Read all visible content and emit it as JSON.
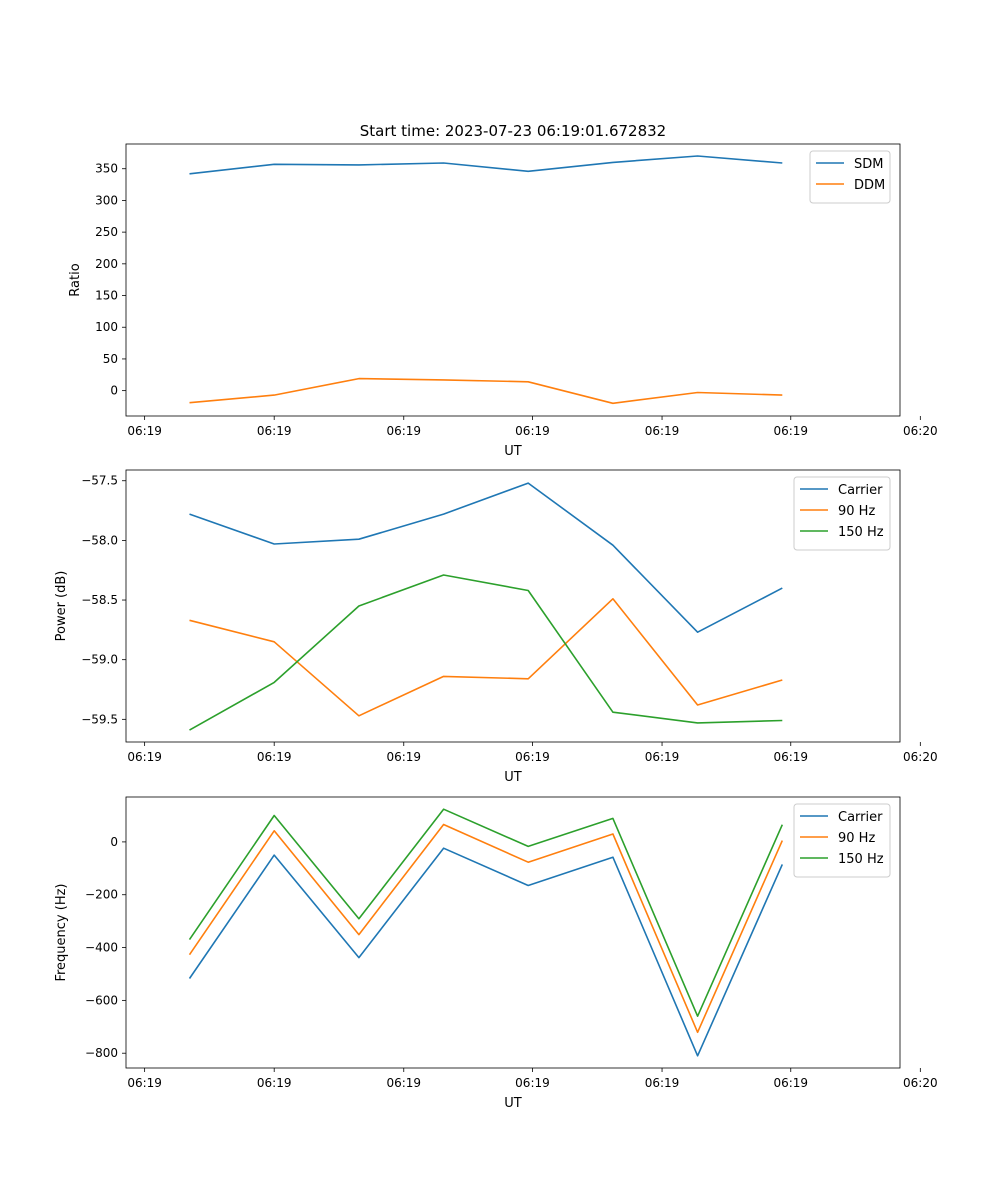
{
  "figure_title": "Start time: 2023-07-23 06:19:01.672832",
  "colors": {
    "blue": "#1f77b4",
    "orange": "#ff7f0e",
    "green": "#2ca02c",
    "axis": "#000000",
    "legend_border": "#cccccc"
  },
  "chart_data": [
    {
      "type": "line",
      "title": "Start time: 2023-07-23 06:19:01.672832",
      "xlabel": "UT",
      "ylabel": "Ratio",
      "x": [
        1,
        2,
        3,
        4,
        5,
        6,
        7,
        8
      ],
      "xlim": [
        0.25,
        9.39
      ],
      "ylim": [
        -40,
        389
      ],
      "x_ticks": [
        0.47,
        2.0,
        3.53,
        5.05,
        6.58,
        8.1,
        9.63
      ],
      "x_tick_labels": [
        "06:19",
        "06:19",
        "06:19",
        "06:19",
        "06:19",
        "06:19",
        "06:20"
      ],
      "y_ticks": [
        0,
        50,
        100,
        150,
        200,
        250,
        300,
        350
      ],
      "y_tick_labels": [
        "0",
        "50",
        "100",
        "150",
        "200",
        "250",
        "300",
        "350"
      ],
      "legend_position": "upper-right",
      "series": [
        {
          "name": "SDM",
          "color": "#1f77b4",
          "values": [
            342,
            357,
            356,
            359,
            346,
            360,
            370,
            359
          ]
        },
        {
          "name": "DDM",
          "color": "#ff7f0e",
          "values": [
            -19,
            -7,
            19,
            17,
            14,
            -20,
            -3,
            -7
          ]
        }
      ]
    },
    {
      "type": "line",
      "title": "",
      "xlabel": "UT",
      "ylabel": "Power (dB)",
      "x": [
        1,
        2,
        3,
        4,
        5,
        6,
        7,
        8
      ],
      "xlim": [
        0.25,
        9.39
      ],
      "ylim": [
        -59.69,
        -57.41
      ],
      "x_ticks": [
        0.47,
        2.0,
        3.53,
        5.05,
        6.58,
        8.1,
        9.63
      ],
      "x_tick_labels": [
        "06:19",
        "06:19",
        "06:19",
        "06:19",
        "06:19",
        "06:19",
        "06:20"
      ],
      "y_ticks": [
        -59.5,
        -59.0,
        -58.5,
        -58.0,
        -57.5
      ],
      "y_tick_labels": [
        "−59.5",
        "−59.0",
        "−58.5",
        "−58.0",
        "−57.5"
      ],
      "legend_position": "upper-right",
      "series": [
        {
          "name": "Carrier",
          "color": "#1f77b4",
          "values": [
            -57.78,
            -58.03,
            -57.99,
            -57.78,
            -57.52,
            -58.04,
            -58.77,
            -58.4
          ]
        },
        {
          "name": "90 Hz",
          "color": "#ff7f0e",
          "values": [
            -58.67,
            -58.85,
            -59.47,
            -59.14,
            -59.16,
            -58.49,
            -59.38,
            -59.17
          ]
        },
        {
          "name": "150 Hz",
          "color": "#2ca02c",
          "values": [
            -59.59,
            -59.19,
            -58.55,
            -58.29,
            -58.42,
            -59.44,
            -59.53,
            -59.51
          ]
        }
      ]
    },
    {
      "type": "line",
      "title": "",
      "xlabel": "UT",
      "ylabel": "Frequency (Hz)",
      "x": [
        1,
        2,
        3,
        4,
        5,
        6,
        7,
        8
      ],
      "xlim": [
        0.25,
        9.39
      ],
      "ylim": [
        -856,
        170
      ],
      "x_ticks": [
        0.47,
        2.0,
        3.53,
        5.05,
        6.58,
        8.1,
        9.63
      ],
      "x_tick_labels": [
        "06:19",
        "06:19",
        "06:19",
        "06:19",
        "06:19",
        "06:19",
        "06:20"
      ],
      "y_ticks": [
        -800,
        -600,
        -400,
        -200,
        0
      ],
      "y_tick_labels": [
        "−800",
        "−600",
        "−400",
        "−200",
        "0"
      ],
      "legend_position": "upper-right",
      "series": [
        {
          "name": "Carrier",
          "color": "#1f77b4",
          "values": [
            -517,
            -50,
            -438,
            -24,
            -165,
            -58,
            -810,
            -85
          ]
        },
        {
          "name": "90 Hz",
          "color": "#ff7f0e",
          "values": [
            -427,
            42,
            -351,
            66,
            -77,
            30,
            -721,
            5
          ]
        },
        {
          "name": "150 Hz",
          "color": "#2ca02c",
          "values": [
            -370,
            100,
            -291,
            124,
            -17,
            89,
            -660,
            65
          ]
        }
      ]
    }
  ]
}
